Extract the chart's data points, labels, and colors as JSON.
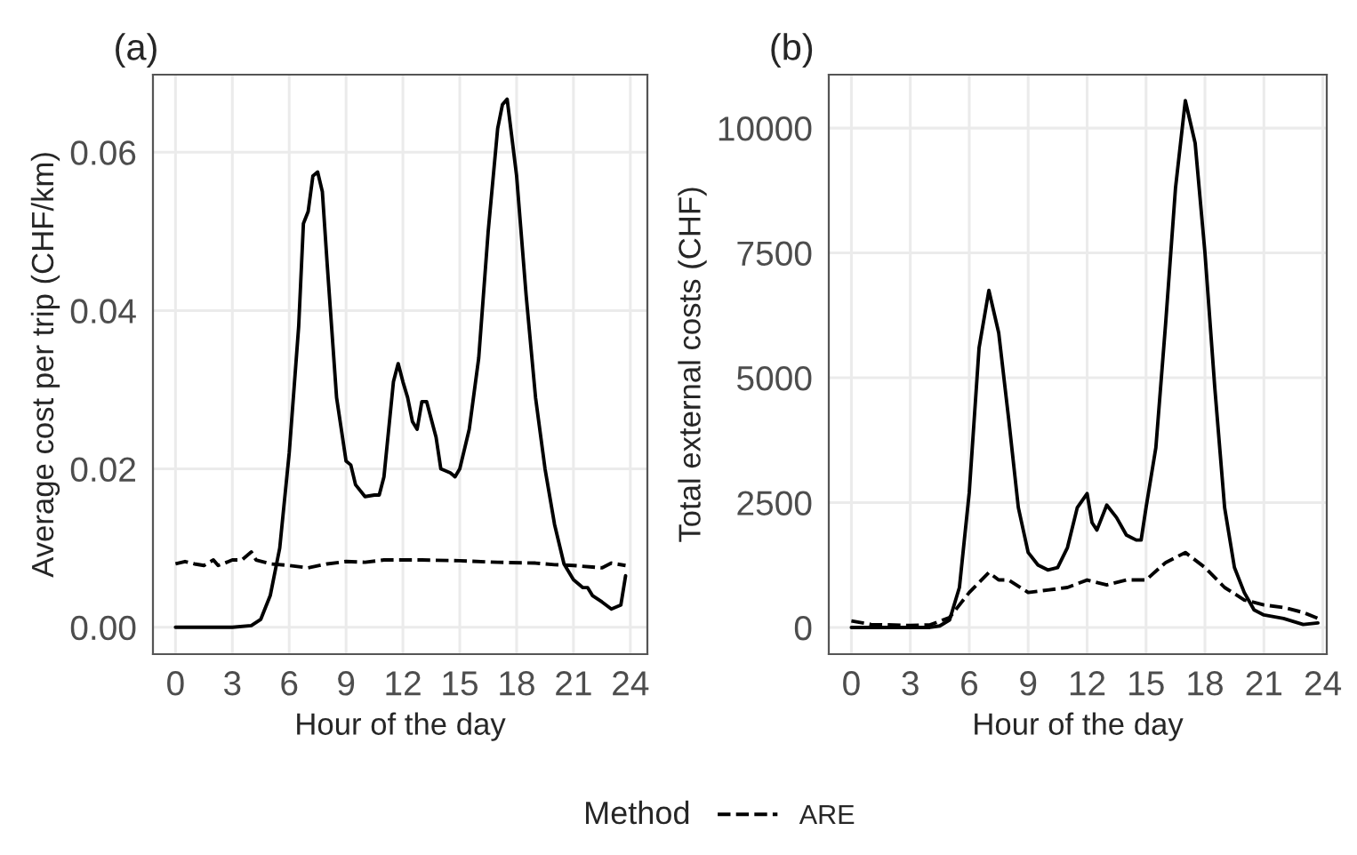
{
  "chart_data": [
    {
      "type": "line",
      "title": "(a)",
      "xlabel": "Hour of the day",
      "ylabel": "Average cost per trip (CHF/km)",
      "xlim": [
        -1.19,
        24.9
      ],
      "ylim": [
        -0.0034,
        0.0698
      ],
      "xticks": [
        0,
        3,
        6,
        9,
        12,
        15,
        18,
        21,
        24
      ],
      "yticks": [
        {
          "value": 0,
          "label": "0.00"
        },
        {
          "value": 0.02,
          "label": "0.02"
        },
        {
          "value": 0.04,
          "label": "0.04"
        },
        {
          "value": 0.06,
          "label": "0.06"
        }
      ],
      "grid": true,
      "marker": "none",
      "legend": "bottom",
      "legend_title": "Method",
      "series": [
        {
          "color": "#000000",
          "line_style": "solid",
          "x": [
            0,
            1,
            2,
            3,
            4,
            4.5,
            5,
            5.5,
            6,
            6.5,
            6.75,
            7,
            7.25,
            7.5,
            7.75,
            8,
            8.5,
            9,
            9.25,
            9.5,
            10,
            10.5,
            10.75,
            11,
            11.5,
            11.75,
            12,
            12.25,
            12.5,
            12.75,
            13,
            13.25,
            13.75,
            14,
            14.5,
            14.75,
            15,
            15.5,
            16,
            16.5,
            17,
            17.25,
            17.5,
            18,
            18.5,
            19,
            19.5,
            20,
            20.5,
            21,
            21.5,
            21.75,
            22,
            22.5,
            23,
            23.5,
            23.75
          ],
          "values": [
            0,
            0,
            0,
            0,
            0.0002,
            0.001,
            0.004,
            0.01,
            0.022,
            0.038,
            0.051,
            0.0525,
            0.057,
            0.0575,
            0.055,
            0.046,
            0.029,
            0.021,
            0.0205,
            0.018,
            0.0165,
            0.0167,
            0.0167,
            0.019,
            0.031,
            0.0333,
            0.031,
            0.029,
            0.026,
            0.025,
            0.0285,
            0.0285,
            0.024,
            0.02,
            0.0195,
            0.019,
            0.02,
            0.025,
            0.034,
            0.05,
            0.063,
            0.066,
            0.0667,
            0.057,
            0.042,
            0.029,
            0.02,
            0.013,
            0.008,
            0.006,
            0.005,
            0.005,
            0.004,
            0.0032,
            0.0023,
            0.0028,
            0.0065
          ]
        },
        {
          "name": "ARE",
          "color": "#000000",
          "line_style": "dashed",
          "x": [
            0,
            0.5,
            1,
            1.5,
            2,
            2.25,
            2.5,
            3,
            3.5,
            4,
            4.25,
            5,
            6,
            7,
            8,
            9,
            10,
            11,
            13,
            15,
            17,
            19,
            20,
            21,
            22,
            22.5,
            23,
            23.75
          ],
          "values": [
            0.008,
            0.0083,
            0.008,
            0.0078,
            0.0085,
            0.0078,
            0.008,
            0.0085,
            0.0085,
            0.0095,
            0.0085,
            0.008,
            0.0078,
            0.0075,
            0.008,
            0.0083,
            0.0082,
            0.0085,
            0.0085,
            0.0084,
            0.0082,
            0.0081,
            0.0079,
            0.0078,
            0.0076,
            0.0075,
            0.0081,
            0.0078
          ]
        }
      ]
    },
    {
      "type": "line",
      "title": "(b)",
      "xlabel": "Hour of the day",
      "ylabel": "Total external costs (CHF)",
      "xlim": [
        -1.15,
        24.2
      ],
      "ylim": [
        -535,
        11070
      ],
      "xticks": [
        0,
        3,
        6,
        9,
        12,
        15,
        18,
        21,
        24
      ],
      "yticks": [
        0,
        2500,
        5000,
        7500,
        10000
      ],
      "grid": true,
      "marker": "none",
      "series": [
        {
          "color": "#000000",
          "line_style": "solid",
          "x": [
            0,
            2,
            4,
            4.5,
            5,
            5.5,
            6,
            6.5,
            7,
            7.5,
            8,
            8.5,
            9,
            9.5,
            10,
            10.5,
            11,
            11.5,
            12,
            12.25,
            12.5,
            13,
            13.5,
            14,
            14.5,
            14.75,
            15,
            15.5,
            16,
            16.5,
            17,
            17.5,
            18,
            18.5,
            19,
            19.5,
            20,
            20.5,
            21,
            22,
            23,
            23.75
          ],
          "values": [
            0,
            0,
            0,
            30,
            150,
            800,
            2700,
            5600,
            6750,
            5900,
            4200,
            2400,
            1500,
            1250,
            1150,
            1200,
            1600,
            2400,
            2680,
            2100,
            1950,
            2450,
            2200,
            1850,
            1750,
            1750,
            2400,
            3600,
            6100,
            8800,
            10550,
            9700,
            7500,
            4800,
            2400,
            1200,
            700,
            350,
            250,
            180,
            60,
            90
          ]
        },
        {
          "color": "#000000",
          "line_style": "dashed",
          "x": [
            0,
            1,
            3,
            4,
            5,
            6,
            7,
            7.5,
            8,
            9,
            10,
            11,
            12,
            13,
            14,
            15,
            16,
            17,
            17.5,
            18,
            19,
            20,
            21,
            22,
            23,
            23.75
          ],
          "values": [
            130,
            60,
            40,
            50,
            200,
            700,
            1100,
            950,
            950,
            700,
            750,
            800,
            950,
            850,
            950,
            950,
            1300,
            1500,
            1350,
            1200,
            800,
            550,
            450,
            400,
            300,
            180
          ]
        }
      ]
    }
  ]
}
